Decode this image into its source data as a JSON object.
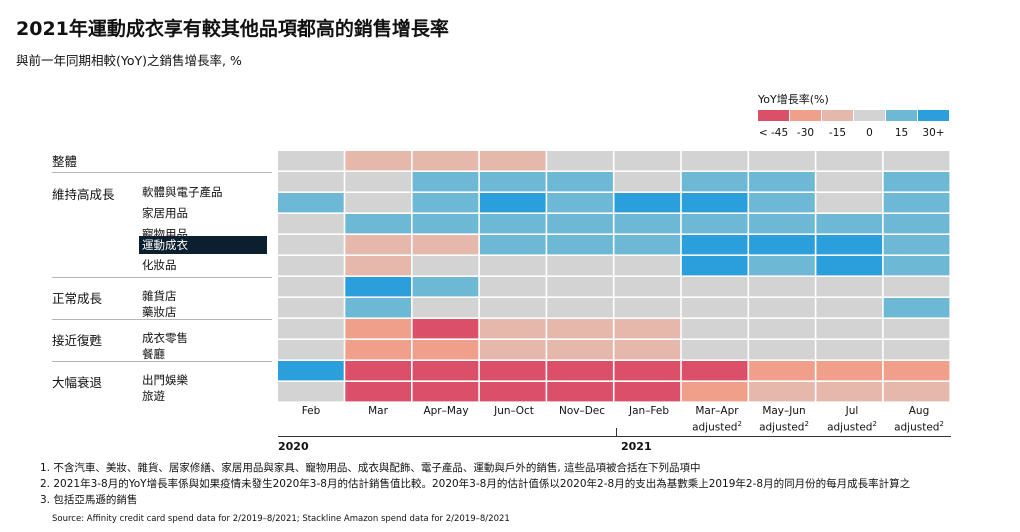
{
  "title": "2021年運動成衣享有較其他品項都高的銷售增長率",
  "subtitle": "與前一年同期相較(YoY)之銷售增長率, %",
  "legend": {
    "title": "YoY增長率(%)",
    "items": [
      {
        "label": "< -45",
        "color": "#db5068"
      },
      {
        "label": "-30",
        "color": "#f0a08a"
      },
      {
        "label": "-15",
        "color": "#e6b8ac"
      },
      {
        "label": "0",
        "color": "#d3d3d3"
      },
      {
        "label": "15",
        "color": "#6db8d4"
      },
      {
        "label": "30+",
        "color": "#2b9fdc"
      }
    ]
  },
  "groups": [
    {
      "label": "整體"
    },
    {
      "label": "維持高成長"
    },
    {
      "label": "正常成長"
    },
    {
      "label": "接近復甦"
    },
    {
      "label": "大幅衰退"
    }
  ],
  "x_axis": {
    "columns": [
      {
        "line1": "Feb",
        "line2": "",
        "sup": ""
      },
      {
        "line1": "Mar",
        "line2": "",
        "sup": ""
      },
      {
        "line1": "Apr–May",
        "line2": "",
        "sup": ""
      },
      {
        "line1": "Jun–Oct",
        "line2": "",
        "sup": ""
      },
      {
        "line1": "Nov–Dec",
        "line2": "",
        "sup": ""
      },
      {
        "line1": "Jan–Feb",
        "line2": "",
        "sup": ""
      },
      {
        "line1": "Mar–Apr",
        "line2": "adjusted",
        "sup": "2"
      },
      {
        "line1": "May–Jun",
        "line2": "adjusted",
        "sup": "2"
      },
      {
        "line1": "Jul",
        "line2": "adjusted",
        "sup": "2"
      },
      {
        "line1": "Aug",
        "line2": "adjusted",
        "sup": "2"
      }
    ],
    "years": [
      "2020",
      "2021"
    ]
  },
  "notes": [
    "1. 不含汽車、美妝、雜貨、居家修繕、家居用品與家具、寵物用品、成衣與配飾、電子產品、運動與戶外的銷售, 這些品項被合括在下列品項中",
    "2. 2021年3-8月的YoY增長率係與如果疫情未發生2020年3-8月的估計銷售值比較。2020年3-8月的估計值係以2020年2-8月的支出為基數乘上2019年2-8月的同月份的每月成長率計算之",
    "3. 包括亞馬遜的銷售"
  ],
  "source": "Source: Affinity credit card spend data for 2/2019–8/2021; Stackline Amazon spend data for 2/2019–8/2021",
  "chart_data": {
    "type": "heatmap",
    "title": "2021年運動成衣享有較其他品項都高的銷售增長率",
    "subtitle": "與前一年同期相較(YoY)之銷售增長率, %",
    "color_scale": {
      "levels": [
        -45,
        -30,
        -15,
        0,
        15,
        30
      ],
      "labels": [
        "< -45",
        "-30",
        "-15",
        "0",
        "15",
        "30+"
      ],
      "colors": [
        "#db5068",
        "#f0a08a",
        "#e6b8ac",
        "#d3d3d3",
        "#6db8d4",
        "#2b9fdc"
      ]
    },
    "columns": [
      "Feb",
      "Mar",
      "Apr–May",
      "Jun–Oct",
      "Nov–Dec",
      "Jan–Feb",
      "Mar–Apr adjusted",
      "May–Jun adjusted",
      "Jul adjusted",
      "Aug adjusted"
    ],
    "rows": [
      {
        "group": "整體",
        "label": "",
        "values": [
          0,
          -15,
          -15,
          -15,
          0,
          0,
          0,
          0,
          0,
          0
        ]
      },
      {
        "group": "維持高成長",
        "label": "軟體與電子產品",
        "values": [
          0,
          0,
          15,
          15,
          15,
          0,
          15,
          15,
          0,
          15
        ]
      },
      {
        "group": "維持高成長",
        "label": "家居用品",
        "values": [
          15,
          0,
          15,
          30,
          15,
          30,
          30,
          15,
          0,
          15
        ]
      },
      {
        "group": "維持高成長",
        "label": "寵物用品",
        "values": [
          0,
          15,
          15,
          15,
          15,
          15,
          15,
          15,
          15,
          15
        ]
      },
      {
        "group": "維持高成長",
        "label": "運動成衣",
        "values": [
          0,
          -15,
          -15,
          15,
          15,
          15,
          30,
          30,
          30,
          15
        ]
      },
      {
        "group": "維持高成長",
        "label": "化妝品",
        "values": [
          0,
          -15,
          0,
          0,
          0,
          0,
          30,
          15,
          30,
          15
        ]
      },
      {
        "group": "正常成長",
        "label": "雜貨店",
        "values": [
          0,
          30,
          15,
          0,
          0,
          0,
          0,
          0,
          0,
          0
        ]
      },
      {
        "group": "正常成長",
        "label": "藥妝店",
        "values": [
          0,
          15,
          0,
          0,
          0,
          0,
          0,
          0,
          0,
          15
        ]
      },
      {
        "group": "接近復甦",
        "label": "成衣零售",
        "values": [
          0,
          -30,
          -45,
          -15,
          -15,
          -15,
          0,
          0,
          0,
          0
        ]
      },
      {
        "group": "接近復甦",
        "label": "餐廳",
        "values": [
          0,
          -30,
          -30,
          -15,
          -15,
          -15,
          0,
          0,
          0,
          0
        ]
      },
      {
        "group": "大幅衰退",
        "label": "出門娛樂",
        "values": [
          30,
          -45,
          -45,
          -45,
          -45,
          -45,
          -45,
          -30,
          -30,
          -30
        ]
      },
      {
        "group": "大幅衰退",
        "label": "旅遊",
        "values": [
          0,
          -45,
          -45,
          -45,
          -45,
          -45,
          -30,
          -15,
          -15,
          -15
        ]
      }
    ]
  }
}
